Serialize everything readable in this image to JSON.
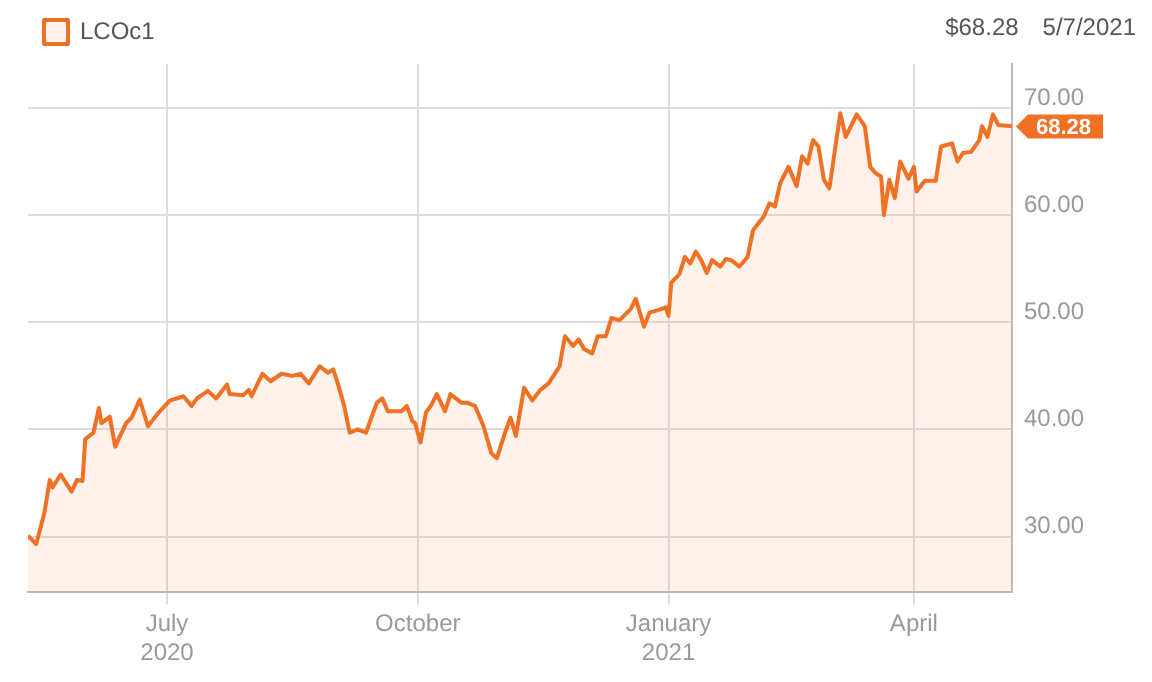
{
  "chart_data": {
    "type": "area",
    "x": [
      "2020-05-11",
      "2020-05-14",
      "2020-05-17",
      "2020-05-19",
      "2020-05-20",
      "2020-05-23",
      "2020-05-25",
      "2020-05-27",
      "2020-05-29",
      "2020-05-31",
      "2020-06-01",
      "2020-06-04",
      "2020-06-06",
      "2020-06-07",
      "2020-06-10",
      "2020-06-12",
      "2020-06-16",
      "2020-06-18",
      "2020-06-21",
      "2020-06-24",
      "2020-06-28",
      "2020-07-02",
      "2020-07-07",
      "2020-07-10",
      "2020-07-12",
      "2020-07-16",
      "2020-07-19",
      "2020-07-23",
      "2020-07-24",
      "2020-07-29",
      "2020-07-31",
      "2020-08-01",
      "2020-08-05",
      "2020-08-08",
      "2020-08-12",
      "2020-08-16",
      "2020-08-19",
      "2020-08-22",
      "2020-08-26",
      "2020-08-29",
      "2020-08-31",
      "2020-09-02",
      "2020-09-04",
      "2020-09-06",
      "2020-09-09",
      "2020-09-12",
      "2020-09-16",
      "2020-09-18",
      "2020-09-20",
      "2020-09-25",
      "2020-09-27",
      "2020-09-29",
      "2020-09-30",
      "2020-10-02",
      "2020-10-04",
      "2020-10-06",
      "2020-10-08",
      "2020-10-11",
      "2020-10-13",
      "2020-10-17",
      "2020-10-19",
      "2020-10-22",
      "2020-10-25",
      "2020-10-28",
      "2020-10-30",
      "2020-11-02",
      "2020-11-04",
      "2020-11-06",
      "2020-11-09",
      "2020-11-12",
      "2020-11-15",
      "2020-11-18",
      "2020-11-22",
      "2020-11-24",
      "2020-11-27",
      "2020-11-29",
      "2020-12-01",
      "2020-12-04",
      "2020-12-06",
      "2020-12-09",
      "2020-12-11",
      "2020-12-14",
      "2020-12-18",
      "2020-12-20",
      "2020-12-23",
      "2020-12-25",
      "2020-12-29",
      "2020-12-31",
      "2021-01-01",
      "2021-01-02",
      "2021-01-05",
      "2021-01-07",
      "2021-01-09",
      "2021-01-11",
      "2021-01-13",
      "2021-01-15",
      "2021-01-17",
      "2021-01-20",
      "2021-01-22",
      "2021-01-24",
      "2021-01-27",
      "2021-01-30",
      "2021-02-01",
      "2021-02-05",
      "2021-02-07",
      "2021-02-09",
      "2021-02-11",
      "2021-02-14",
      "2021-02-17",
      "2021-02-19",
      "2021-02-21",
      "2021-02-23",
      "2021-02-25",
      "2021-02-27",
      "2021-03-01",
      "2021-03-05",
      "2021-03-07",
      "2021-03-11",
      "2021-03-14",
      "2021-03-16",
      "2021-03-18",
      "2021-03-20",
      "2021-03-21",
      "2021-03-23",
      "2021-03-25",
      "2021-03-27",
      "2021-03-30",
      "2021-04-01",
      "2021-04-02",
      "2021-04-05",
      "2021-04-09",
      "2021-04-11",
      "2021-04-15",
      "2021-04-17",
      "2021-04-19",
      "2021-04-22",
      "2021-04-25",
      "2021-04-26",
      "2021-04-28",
      "2021-04-30",
      "2021-05-02",
      "2021-05-07"
    ],
    "series": [
      {
        "name": "LCOc1",
        "color": "#f07124",
        "values": [
          30.1,
          29.3,
          32.2,
          35.3,
          34.6,
          35.8,
          35.0,
          34.2,
          35.3,
          35.2,
          39.1,
          39.7,
          42.0,
          40.6,
          41.2,
          38.4,
          40.6,
          41.1,
          42.8,
          40.3,
          41.6,
          42.7,
          43.1,
          42.2,
          42.9,
          43.6,
          42.9,
          44.2,
          43.3,
          43.2,
          43.7,
          43.1,
          45.2,
          44.5,
          45.2,
          45.0,
          45.2,
          44.3,
          45.9,
          45.3,
          45.6,
          44.0,
          42.2,
          39.7,
          40.0,
          39.7,
          42.5,
          42.9,
          41.7,
          41.7,
          42.2,
          40.8,
          40.6,
          38.8,
          41.6,
          42.3,
          43.3,
          41.7,
          43.3,
          42.5,
          42.5,
          42.2,
          40.4,
          37.8,
          37.3,
          39.7,
          41.1,
          39.4,
          43.9,
          42.7,
          43.7,
          44.3,
          45.9,
          48.7,
          47.8,
          48.4,
          47.5,
          47.1,
          48.7,
          48.7,
          50.4,
          50.2,
          51.2,
          52.2,
          49.6,
          50.9,
          51.2,
          51.4,
          50.6,
          53.7,
          54.5,
          56.1,
          55.5,
          56.6,
          55.8,
          54.6,
          55.8,
          55.2,
          55.9,
          55.8,
          55.2,
          56.1,
          58.6,
          59.9,
          61.1,
          60.8,
          63.0,
          64.5,
          62.7,
          65.5,
          64.8,
          67.0,
          66.4,
          63.3,
          62.5,
          69.5,
          67.3,
          69.4,
          68.3,
          64.5,
          63.9,
          63.6,
          60.0,
          63.3,
          61.6,
          65.0,
          63.4,
          64.5,
          62.2,
          63.2,
          63.2,
          66.4,
          66.7,
          65.0,
          65.8,
          65.9,
          67.0,
          68.3,
          67.3,
          69.4,
          68.4,
          68.3
        ]
      }
    ],
    "xlim": [
      "2020-05-11",
      "2021-05-07"
    ],
    "xticks": [
      {
        "value": "2020-07-01",
        "label": "July\n2020"
      },
      {
        "value": "2020-10-01",
        "label": "October"
      },
      {
        "value": "2021-01-01",
        "label": "January\n2021"
      },
      {
        "value": "2021-04-01",
        "label": "April"
      }
    ],
    "ylim": [
      24.8,
      74.1
    ],
    "yticks": [
      {
        "value": 30,
        "label": "30.00"
      },
      {
        "value": 40,
        "label": "40.00"
      },
      {
        "value": 50,
        "label": "50.00"
      },
      {
        "value": 60,
        "label": "60.00"
      },
      {
        "value": 70,
        "label": "70.00"
      }
    ],
    "grid": true,
    "legend": "top left",
    "annotations": [
      "$68.28",
      "5/7/2021",
      {
        "text": "68.28",
        "x": "2021-05-07",
        "y": 68.28
      }
    ]
  }
}
